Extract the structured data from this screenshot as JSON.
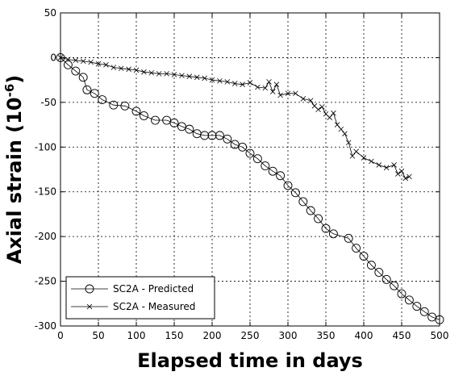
{
  "chart_data": {
    "type": "line",
    "xlabel": "Elapsed time in days",
    "ylabel": "Axial strain (10",
    "ylabel_exponent": "-6",
    "ylabel_suffix": ")",
    "xlim": [
      0,
      500
    ],
    "ylim": [
      -300,
      50
    ],
    "xticks": [
      "0",
      "50",
      "100",
      "150",
      "200",
      "250",
      "300",
      "350",
      "400",
      "450",
      "500"
    ],
    "yticks": [
      "50",
      "0",
      "-50",
      "-100",
      "-150",
      "-200",
      "-250",
      "-300"
    ],
    "grid": true,
    "legend_position": "bottom-left",
    "series": [
      {
        "name": "SC2A - Predicted",
        "marker": "circle",
        "x": [
          0,
          10,
          20,
          30,
          35,
          45,
          55,
          70,
          85,
          100,
          110,
          125,
          140,
          150,
          160,
          170,
          180,
          190,
          200,
          210,
          220,
          230,
          240,
          250,
          260,
          270,
          280,
          290,
          300,
          310,
          320,
          330,
          340,
          350,
          360,
          380,
          390,
          400,
          410,
          420,
          430,
          440,
          450,
          460,
          470,
          480,
          490,
          500
        ],
        "y": [
          0,
          -8,
          -15,
          -22,
          -36,
          -40,
          -47,
          -53,
          -54,
          -60,
          -65,
          -70,
          -70,
          -73,
          -77,
          -80,
          -85,
          -87,
          -87,
          -87,
          -91,
          -97,
          -100,
          -107,
          -113,
          -121,
          -127,
          -132,
          -143,
          -151,
          -161,
          -171,
          -180,
          -191,
          -197,
          -202,
          -213,
          -222,
          -232,
          -240,
          -248,
          -255,
          -264,
          -271,
          -278,
          -284,
          -290,
          -293
        ]
      },
      {
        "name": "SC2A - Measured",
        "marker": "x",
        "x": [
          0,
          10,
          20,
          30,
          40,
          50,
          60,
          70,
          80,
          90,
          100,
          110,
          120,
          130,
          140,
          150,
          160,
          170,
          180,
          190,
          200,
          210,
          220,
          230,
          240,
          250,
          260,
          270,
          275,
          280,
          285,
          290,
          300,
          310,
          320,
          330,
          335,
          340,
          345,
          350,
          355,
          360,
          365,
          370,
          375,
          380,
          385,
          390,
          400,
          410,
          420,
          430,
          440,
          445,
          450,
          455,
          460
        ],
        "y": [
          0,
          -2,
          -3,
          -4,
          -5,
          -7,
          -8,
          -11,
          -12,
          -13,
          -14,
          -16,
          -17,
          -18,
          -18,
          -19,
          -20,
          -21,
          -22,
          -23,
          -25,
          -26,
          -27,
          -29,
          -30,
          -28,
          -33,
          -34,
          -27,
          -38,
          -30,
          -42,
          -40,
          -40,
          -46,
          -48,
          -54,
          -58,
          -55,
          -63,
          -67,
          -62,
          -75,
          -80,
          -85,
          -95,
          -110,
          -105,
          -112,
          -116,
          -120,
          -123,
          -120,
          -130,
          -127,
          -135,
          -133
        ]
      }
    ]
  }
}
